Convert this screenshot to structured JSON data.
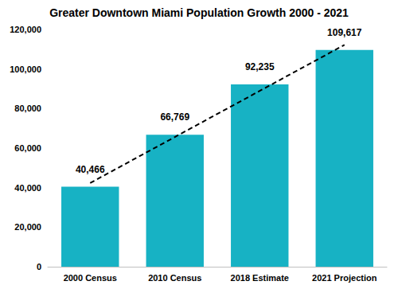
{
  "chart_data": {
    "type": "bar",
    "title": "Greater Downtown Miami Population Growth 2000 - 2021",
    "categories": [
      "2000 Census",
      "2010 Census",
      "2018 Estimate",
      "2021 Projection"
    ],
    "series": [
      {
        "type": "bar",
        "color": "#17b2c4",
        "data_labels": true,
        "values": [
          40466,
          66769,
          92235,
          109617
        ],
        "value_labels": [
          "40,466",
          "66,769",
          "92,235",
          "109,617"
        ]
      },
      {
        "type": "line",
        "color": "#000000",
        "line_style": "dashed",
        "marker": "none",
        "values": [
          42334,
          65626,
          88918,
          112210
        ]
      }
    ],
    "ylim": [
      0,
      120000
    ],
    "yticks": [
      {
        "value": 0,
        "label": "0"
      },
      {
        "value": 20000,
        "label": "20,000"
      },
      {
        "value": 40000,
        "label": "40,000"
      },
      {
        "value": 60000,
        "label": "60,000"
      },
      {
        "value": 80000,
        "label": "80,000"
      },
      {
        "value": 100000,
        "label": "100,000"
      },
      {
        "value": 120000,
        "label": "120,000"
      }
    ],
    "grid": false
  }
}
